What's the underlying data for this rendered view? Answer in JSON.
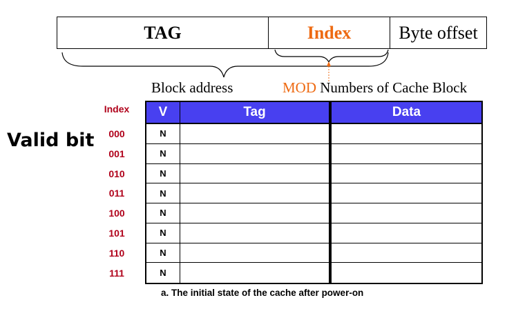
{
  "address": {
    "tag": "TAG",
    "index": "Index",
    "byte_offset": "Byte offset"
  },
  "labels": {
    "block_address": "Block address",
    "mod": "MOD",
    "numbers_of_cache_block": " Numbers of Cache Block",
    "valid_bit": "Valid bit",
    "index_header": "Index"
  },
  "table": {
    "headers": {
      "v": "V",
      "tag": "Tag",
      "data": "Data"
    },
    "rows": [
      {
        "index": "000",
        "v": "N",
        "tag": "",
        "data": ""
      },
      {
        "index": "001",
        "v": "N",
        "tag": "",
        "data": ""
      },
      {
        "index": "010",
        "v": "N",
        "tag": "",
        "data": ""
      },
      {
        "index": "011",
        "v": "N",
        "tag": "",
        "data": ""
      },
      {
        "index": "100",
        "v": "N",
        "tag": "",
        "data": ""
      },
      {
        "index": "101",
        "v": "N",
        "tag": "",
        "data": ""
      },
      {
        "index": "110",
        "v": "N",
        "tag": "",
        "data": ""
      },
      {
        "index": "111",
        "v": "N",
        "tag": "",
        "data": ""
      }
    ]
  },
  "caption": "a. The initial state of the cache after power-on",
  "colors": {
    "orange": "#ee6a12",
    "index_red": "#b0001a",
    "header_blue": "#4840f0"
  }
}
